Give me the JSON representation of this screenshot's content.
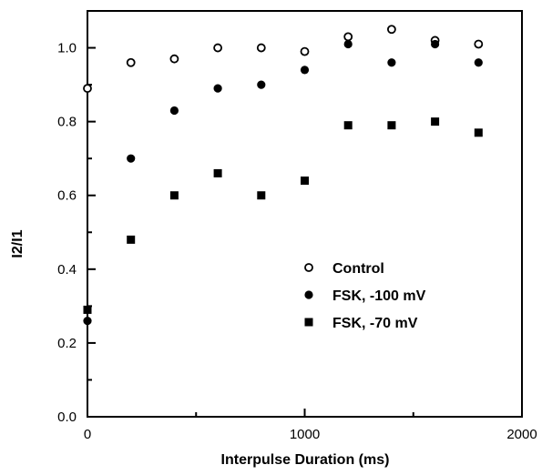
{
  "chart_data": {
    "type": "scatter",
    "xlabel": "Interpulse Duration (ms)",
    "ylabel": "I2/I1",
    "xlim": [
      0,
      2000
    ],
    "ylim": [
      0.0,
      1.1
    ],
    "xticks": [
      0,
      1000,
      2000
    ],
    "xtick_labels": [
      "0",
      "1000",
      "2000"
    ],
    "yticks": [
      0.0,
      0.2,
      0.4,
      0.6,
      0.8,
      1.0
    ],
    "ytick_labels": [
      "0.0",
      "0.2",
      "0.4",
      "0.6",
      "0.8",
      "1.0"
    ],
    "grid": false,
    "legend_position": "lower-right",
    "series": [
      {
        "name": "Control",
        "marker": "open-circle",
        "color": "#000000",
        "x": [
          0,
          200,
          400,
          600,
          800,
          1000,
          1200,
          1400,
          1600,
          1800
        ],
        "y": [
          0.89,
          0.96,
          0.97,
          1.0,
          1.0,
          0.99,
          1.03,
          1.05,
          1.02,
          1.01
        ]
      },
      {
        "name": "FSK, -100 mV",
        "marker": "filled-circle",
        "color": "#000000",
        "x": [
          0,
          200,
          400,
          600,
          800,
          1000,
          1200,
          1400,
          1600,
          1800
        ],
        "y": [
          0.26,
          0.7,
          0.83,
          0.89,
          0.9,
          0.94,
          1.01,
          0.96,
          1.01,
          0.96
        ]
      },
      {
        "name": "FSK, -70 mV",
        "marker": "filled-square",
        "color": "#000000",
        "x": [
          0,
          200,
          400,
          600,
          800,
          1000,
          1200,
          1400,
          1600,
          1800
        ],
        "y": [
          0.29,
          0.48,
          0.6,
          0.66,
          0.6,
          0.64,
          0.79,
          0.79,
          0.8,
          0.77
        ]
      }
    ]
  }
}
